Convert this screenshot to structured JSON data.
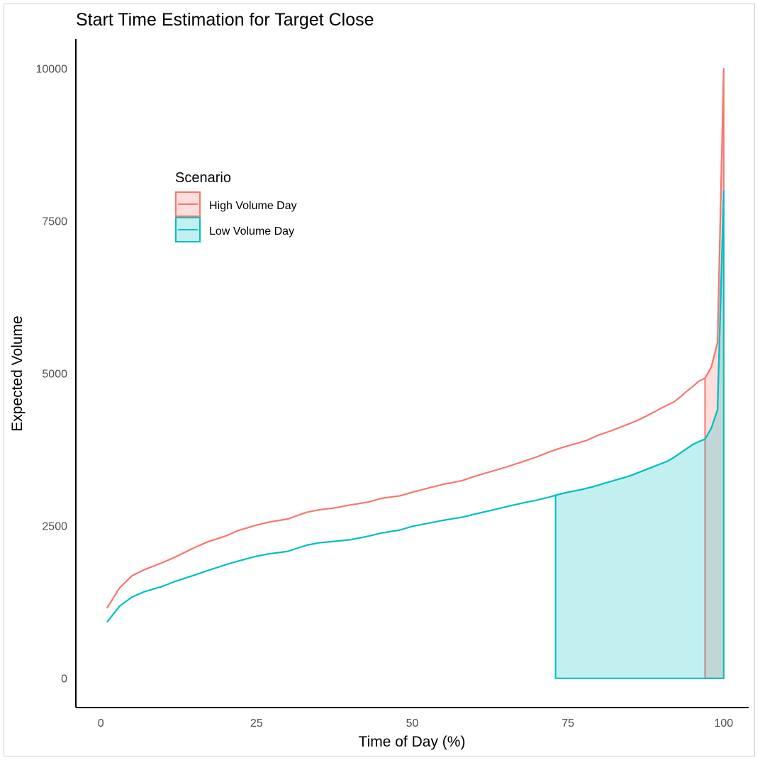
{
  "chart_data": {
    "type": "line",
    "title": "Start Time Estimation for Target Close",
    "xlabel": "Time of Day (%)",
    "ylabel": "Expected Volume",
    "xlim": [
      -4,
      104
    ],
    "ylim": [
      -480,
      10480
    ],
    "x_ticks": [
      0,
      25,
      50,
      75,
      100
    ],
    "y_ticks": [
      0,
      2500,
      5000,
      7500,
      10000
    ],
    "grid": false,
    "legend": {
      "title": "Scenario",
      "placement": "upper-left inside"
    },
    "series": [
      {
        "name": "High Volume Day",
        "color": "#F8766D",
        "fill": "#F8766D",
        "shade_from_x": 97,
        "x": [
          1,
          3,
          5,
          7,
          10,
          12,
          15,
          17,
          20,
          22,
          25,
          27,
          30,
          33,
          35,
          38,
          40,
          43,
          45,
          48,
          50,
          53,
          55,
          58,
          60,
          63,
          65,
          68,
          70,
          72,
          74,
          76,
          78,
          80,
          82,
          84,
          86,
          88,
          90,
          92,
          93,
          94,
          95,
          96,
          97,
          98,
          99,
          100
        ],
        "y": [
          1150,
          1480,
          1680,
          1780,
          1900,
          1990,
          2140,
          2230,
          2330,
          2420,
          2510,
          2560,
          2610,
          2720,
          2760,
          2800,
          2840,
          2890,
          2950,
          2990,
          3050,
          3130,
          3180,
          3240,
          3310,
          3400,
          3460,
          3560,
          3630,
          3710,
          3780,
          3840,
          3900,
          3990,
          4060,
          4140,
          4220,
          4320,
          4430,
          4530,
          4610,
          4700,
          4780,
          4870,
          4920,
          5100,
          5500,
          10000
        ]
      },
      {
        "name": "Low Volume Day",
        "color": "#00BFC4",
        "fill": "#00BFC4",
        "shade_from_x": 73,
        "x": [
          1,
          3,
          5,
          7,
          10,
          12,
          15,
          17,
          20,
          22,
          25,
          27,
          30,
          33,
          35,
          38,
          40,
          43,
          45,
          48,
          50,
          53,
          55,
          58,
          60,
          63,
          65,
          68,
          70,
          72,
          73,
          75,
          77,
          79,
          81,
          83,
          85,
          87,
          89,
          91,
          92,
          93,
          94,
          95,
          96,
          97,
          98,
          99,
          100
        ],
        "y": [
          920,
          1180,
          1330,
          1420,
          1510,
          1590,
          1690,
          1760,
          1860,
          1920,
          2000,
          2040,
          2080,
          2180,
          2220,
          2250,
          2270,
          2330,
          2380,
          2430,
          2490,
          2550,
          2590,
          2640,
          2690,
          2760,
          2810,
          2880,
          2920,
          2970,
          3000,
          3050,
          3090,
          3140,
          3200,
          3260,
          3320,
          3400,
          3480,
          3560,
          3620,
          3690,
          3760,
          3830,
          3880,
          3920,
          4100,
          4400,
          8000
        ]
      }
    ]
  }
}
